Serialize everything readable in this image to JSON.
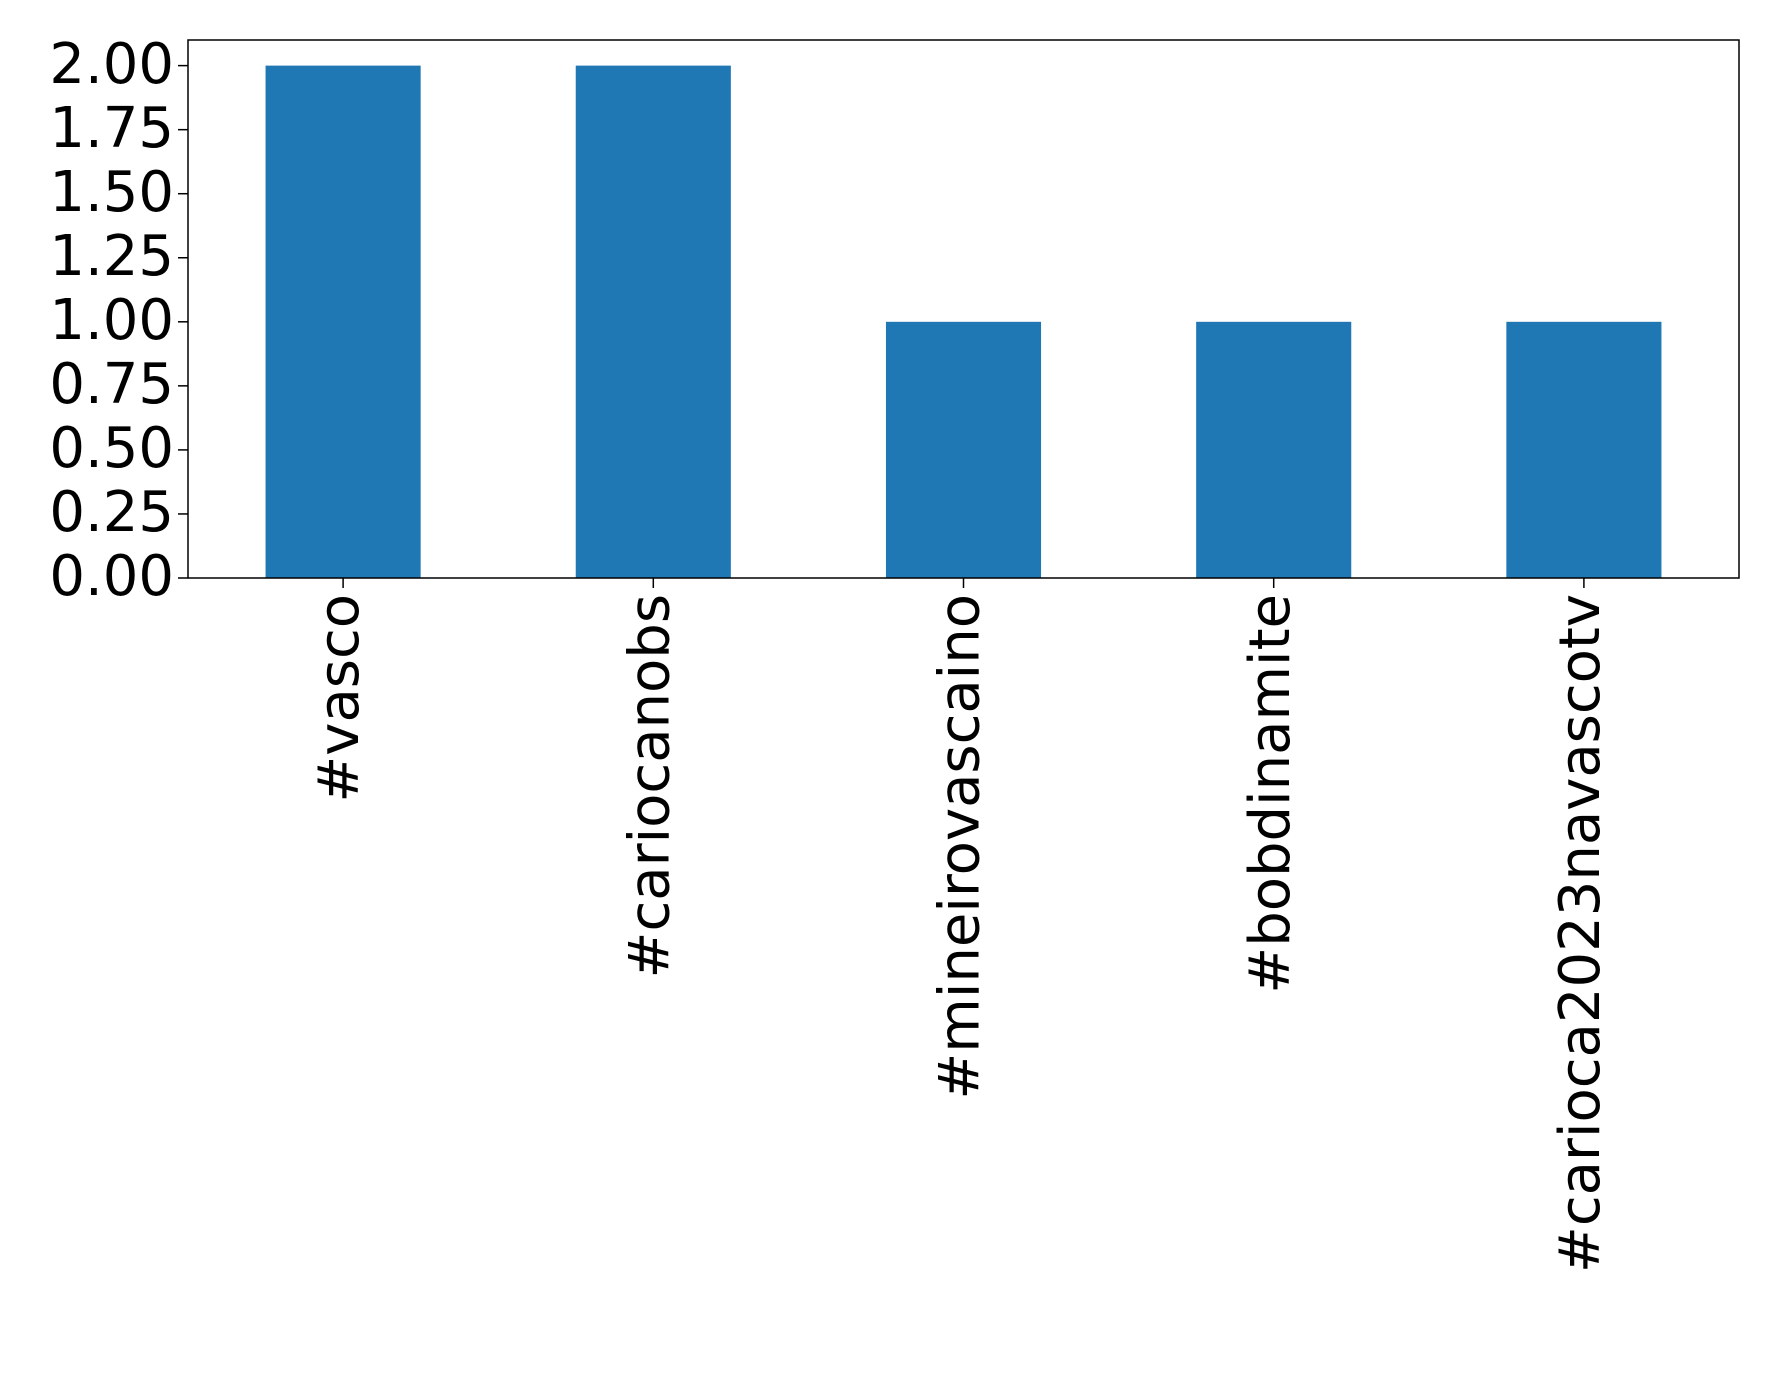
{
  "chart_data": {
    "type": "bar",
    "categories": [
      "#vasco",
      "#cariocanobs",
      "#mineirovascaino",
      "#bobdinamite",
      "#carioca2023navascotv"
    ],
    "values": [
      2,
      2,
      1,
      1,
      1
    ],
    "color": "#1f77b4",
    "ylim": [
      0,
      2.1
    ],
    "yticks": [
      {
        "value": 0,
        "label": "0.00"
      },
      {
        "value": 0.25,
        "label": "0.25"
      },
      {
        "value": 0.5,
        "label": "0.50"
      },
      {
        "value": 0.75,
        "label": "0.75"
      },
      {
        "value": 1,
        "label": "1.00"
      },
      {
        "value": 1.25,
        "label": "1.25"
      },
      {
        "value": 1.5,
        "label": "1.50"
      },
      {
        "value": 1.75,
        "label": "1.75"
      },
      {
        "value": 2,
        "label": "2.00"
      }
    ],
    "grid": false
  }
}
